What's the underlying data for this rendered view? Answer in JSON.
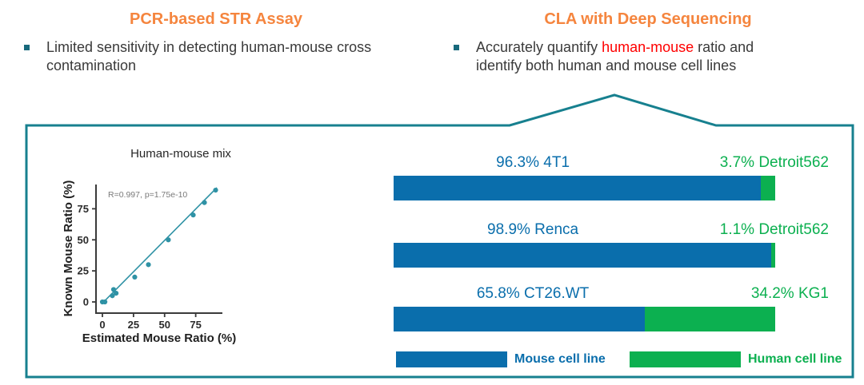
{
  "header": {
    "left": {
      "title": "PCR-based STR Assay",
      "bullet": "Limited sensitivity in detecting human-mouse cross contamination"
    },
    "right": {
      "title": "CLA with Deep Sequencing",
      "bullet_before": "Accurately quantify ",
      "bullet_highlight": "human-mouse",
      "bullet_after": " ratio and identify both human and mouse cell lines"
    }
  },
  "colors": {
    "accent_orange": "#F5853E",
    "panel_border_teal": "#17808F",
    "bullet_teal": "#17697C",
    "scatter_teal": "#2F92A5",
    "mouse_blue": "#0A6EAC",
    "human_green": "#0CB050",
    "highlight_red": "#FF0000"
  },
  "chart_data": [
    {
      "type": "scatter",
      "title": "Human-mouse mix",
      "xlabel": "Estimated Mouse Ratio (%)",
      "ylabel": "Known Mouse Ratio (%)",
      "annotation": "R=0.997, p=1.75e-10",
      "xticks": [
        0,
        25,
        50,
        75
      ],
      "yticks": [
        0,
        25,
        50,
        75
      ],
      "xlim": [
        -5,
        96
      ],
      "ylim": [
        -4,
        94
      ],
      "grid": false,
      "points": [
        [
          0,
          0
        ],
        [
          2,
          0
        ],
        [
          8,
          5
        ],
        [
          9,
          10
        ],
        [
          11,
          7
        ],
        [
          26,
          20
        ],
        [
          37,
          30
        ],
        [
          53,
          50
        ],
        [
          73,
          70
        ],
        [
          82,
          80
        ],
        [
          91,
          90
        ]
      ],
      "trendline": {
        "x1": 0,
        "y1": -1,
        "x2": 92,
        "y2": 92
      }
    },
    {
      "type": "bar",
      "subtype": "horizontal-stacked",
      "series_names": [
        "Mouse cell line",
        "Human cell line"
      ],
      "bars": [
        {
          "mouse_label": "96.3% 4T1",
          "mouse_pct": 96.3,
          "human_label": "3.7% Detroit562",
          "human_pct": 3.7
        },
        {
          "mouse_label": "98.9% Renca",
          "mouse_pct": 98.9,
          "human_label": "1.1% Detroit562",
          "human_pct": 1.1
        },
        {
          "mouse_label": "65.8% CT26.WT",
          "mouse_pct": 65.8,
          "human_label": "34.2% KG1",
          "human_pct": 34.2
        }
      ],
      "legend": [
        {
          "label": "Mouse cell line",
          "color_key": "mouse"
        },
        {
          "label": "Human cell line",
          "color_key": "human"
        }
      ]
    }
  ]
}
